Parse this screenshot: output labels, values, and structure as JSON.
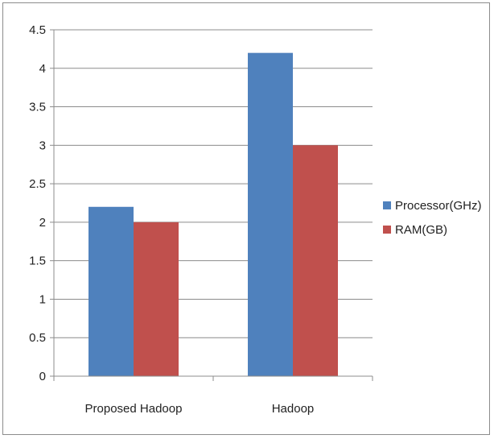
{
  "chart_data": {
    "type": "bar",
    "categories": [
      "Proposed  Hadoop",
      "Hadoop"
    ],
    "series": [
      {
        "name": "Processor(GHz)",
        "values": [
          2.2,
          4.2
        ],
        "color": "#4f81bd"
      },
      {
        "name": "RAM(GB)",
        "values": [
          2.0,
          3.0
        ],
        "color": "#c0504d"
      }
    ],
    "ylim": [
      0,
      4.5
    ],
    "yticks": [
      "0",
      "0.5",
      "1",
      "1.5",
      "2",
      "2.5",
      "3",
      "3.5",
      "4",
      "4.5"
    ],
    "grid": true,
    "legend_position": "right"
  }
}
